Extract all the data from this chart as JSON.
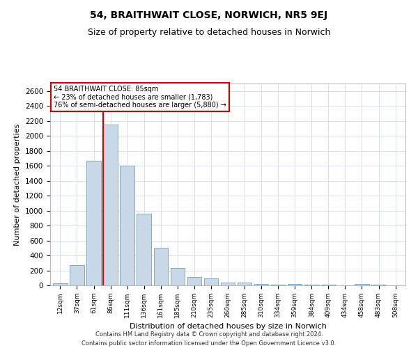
{
  "title": "54, BRAITHWAIT CLOSE, NORWICH, NR5 9EJ",
  "subtitle": "Size of property relative to detached houses in Norwich",
  "xlabel": "Distribution of detached houses by size in Norwich",
  "ylabel": "Number of detached properties",
  "footnote1": "Contains HM Land Registry data © Crown copyright and database right 2024.",
  "footnote2": "Contains public sector information licensed under the Open Government Licence v3.0.",
  "annotation_line1": "54 BRAITHWAIT CLOSE: 85sqm",
  "annotation_line2": "← 23% of detached houses are smaller (1,783)",
  "annotation_line3": "76% of semi-detached houses are larger (5,880) →",
  "bar_categories": [
    "12sqm",
    "37sqm",
    "61sqm",
    "86sqm",
    "111sqm",
    "136sqm",
    "161sqm",
    "185sqm",
    "210sqm",
    "235sqm",
    "260sqm",
    "285sqm",
    "310sqm",
    "334sqm",
    "359sqm",
    "384sqm",
    "409sqm",
    "434sqm",
    "458sqm",
    "483sqm",
    "508sqm"
  ],
  "bar_values": [
    25,
    270,
    1670,
    2150,
    1600,
    960,
    500,
    235,
    115,
    90,
    40,
    35,
    20,
    10,
    15,
    8,
    5,
    3,
    15,
    5,
    3
  ],
  "bar_color": "#c9d9e8",
  "bar_edge_color": "#7fa8c9",
  "vline_color": "#cc0000",
  "vline_bar_index": 3,
  "annotation_box_edgecolor": "#cc0000",
  "grid_color": "#c8d4e0",
  "background_color": "#ffffff",
  "ylim": [
    0,
    2700
  ],
  "yticks": [
    0,
    200,
    400,
    600,
    800,
    1000,
    1200,
    1400,
    1600,
    1800,
    2000,
    2200,
    2400,
    2600
  ],
  "title_fontsize": 10,
  "subtitle_fontsize": 9,
  "xlabel_fontsize": 8,
  "ylabel_fontsize": 8,
  "xtick_fontsize": 6.5,
  "ytick_fontsize": 7.5,
  "annotation_fontsize": 7,
  "footnote_fontsize": 6
}
